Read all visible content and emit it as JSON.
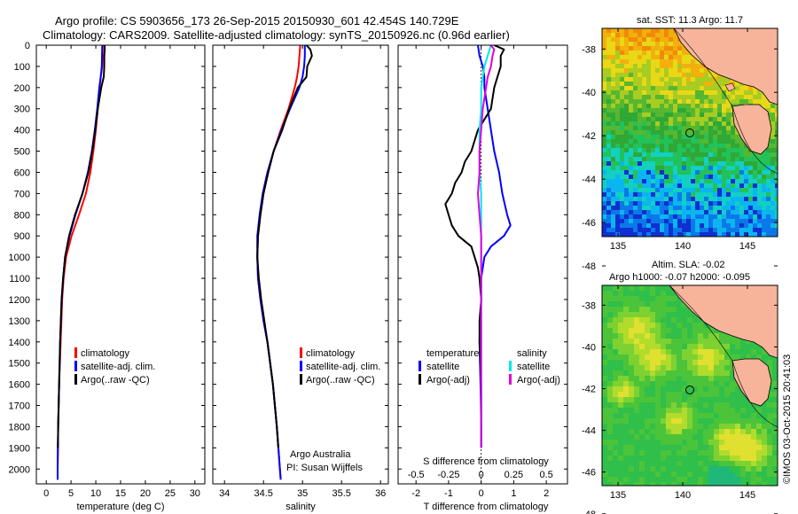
{
  "header": {
    "line1": "Argo profile: CS 5903656_173 26-Sep-2015 20150930_601 42.454S 140.729E",
    "line2": "Climatology: CARS2009. Satellite-adjusted climatology: synTS_20150926.nc (0.96d earlier)"
  },
  "colors": {
    "climatology": "#ff0000",
    "satellite": "#0000ff",
    "argo": "#000000",
    "cyan": "#00e5ee",
    "magenta": "#e000e0",
    "land": "#f7b49a"
  },
  "depth_ticks": [
    0,
    100,
    200,
    300,
    400,
    500,
    600,
    700,
    800,
    900,
    1000,
    1100,
    1200,
    1300,
    1400,
    1500,
    1600,
    1700,
    1800,
    1900,
    2000
  ],
  "map_sst": {
    "title": "sat. SST: 11.3 Argo: 11.7",
    "x_ticks": [
      "135",
      "140",
      "145"
    ],
    "y_ticks": [
      "-38",
      "-40",
      "-42",
      "-44",
      "-46",
      "-48"
    ]
  },
  "map_sla": {
    "title1": "Altim. SLA: -0.02",
    "title2": "Argo h1000: -0.07 h2000: -0.095",
    "x_ticks": [
      "135",
      "140",
      "145"
    ],
    "y_ticks": [
      "-38",
      "-40",
      "-42",
      "-44",
      "-46",
      "-48"
    ]
  },
  "credit": "©IMOS 03-Oct-2015 20:41:03",
  "chart_data": [
    {
      "type": "line",
      "xlabel": "temperature (deg C)",
      "ylabel": "",
      "xlim": [
        -2,
        32
      ],
      "ylim": [
        2070,
        0
      ],
      "x_ticks": [
        "0",
        "5",
        "10",
        "15",
        "20",
        "25",
        "30"
      ],
      "legend": [
        "climatology",
        "satellite-adj. clim.",
        "Argo(..raw -QC)"
      ],
      "series": [
        {
          "name": "climatology",
          "depth": [
            0,
            100,
            150,
            200,
            300,
            400,
            500,
            600,
            700,
            800,
            900,
            1000,
            1100,
            1200,
            1400,
            1600,
            1800,
            2000,
            2050
          ],
          "values": [
            11.4,
            11.3,
            11.0,
            10.8,
            10.4,
            10.0,
            9.5,
            8.9,
            8.0,
            6.6,
            5.1,
            4.0,
            3.5,
            3.2,
            2.9,
            2.6,
            2.4,
            2.3,
            2.3
          ]
        },
        {
          "name": "satellite-adj. clim.",
          "depth": [
            0,
            100,
            150,
            200,
            300,
            400,
            500,
            600,
            700,
            800,
            900,
            1000,
            1100,
            1200,
            1400,
            1600,
            1800,
            2000,
            2050
          ],
          "values": [
            11.3,
            11.2,
            11.0,
            10.7,
            10.3,
            9.8,
            9.2,
            8.4,
            7.3,
            5.9,
            4.7,
            3.8,
            3.4,
            3.1,
            2.8,
            2.6,
            2.4,
            2.3,
            2.3
          ]
        },
        {
          "name": "Argo(..raw -QC)",
          "depth": [
            0,
            20,
            50,
            100,
            150,
            200,
            300,
            400,
            500,
            600,
            700,
            800,
            900,
            1000,
            1100,
            1200,
            1400,
            1600,
            1800,
            1900
          ],
          "values": [
            11.8,
            11.8,
            11.7,
            11.7,
            11.6,
            11.1,
            10.4,
            9.9,
            9.3,
            8.5,
            7.3,
            5.8,
            4.6,
            3.8,
            3.4,
            3.1,
            2.8,
            2.6,
            2.4,
            2.35
          ]
        }
      ]
    },
    {
      "type": "line",
      "xlabel": "salinity",
      "ylabel": "",
      "xlim": [
        33.85,
        36.1
      ],
      "ylim": [
        2070,
        0
      ],
      "x_ticks": [
        "34",
        "34.5",
        "35",
        "35.5",
        "36"
      ],
      "legend": [
        "climatology",
        "satellite-adj. clim.",
        "Argo(..raw -QC)"
      ],
      "annotation": [
        "Argo Australia",
        "PI: Susan Wijffels"
      ],
      "series": [
        {
          "name": "climatology",
          "depth": [
            0,
            50,
            100,
            150,
            200,
            300,
            400,
            500,
            600,
            700,
            800,
            900,
            1000,
            1100,
            1200,
            1300,
            1400,
            1600,
            1800,
            2000,
            2050
          ],
          "values": [
            34.97,
            34.96,
            34.95,
            34.93,
            34.9,
            34.82,
            34.72,
            34.63,
            34.56,
            34.5,
            34.46,
            34.43,
            34.42,
            34.43,
            34.46,
            34.5,
            34.55,
            34.62,
            34.67,
            34.71,
            34.72
          ]
        },
        {
          "name": "satellite-adj. clim.",
          "depth": [
            0,
            50,
            100,
            150,
            200,
            300,
            400,
            500,
            600,
            700,
            800,
            900,
            1000,
            1100,
            1200,
            1300,
            1400,
            1600,
            1800,
            2000,
            2050
          ],
          "values": [
            35.03,
            35.03,
            35.02,
            35.0,
            34.96,
            34.84,
            34.73,
            34.63,
            34.55,
            34.49,
            34.45,
            34.42,
            34.42,
            34.43,
            34.46,
            34.5,
            34.55,
            34.62,
            34.67,
            34.71,
            34.72
          ]
        },
        {
          "name": "Argo(..raw -QC)",
          "depth": [
            0,
            20,
            50,
            100,
            150,
            200,
            300,
            400,
            500,
            600,
            700,
            800,
            900,
            1000,
            1100,
            1200,
            1400,
            1600,
            1800,
            1900
          ],
          "values": [
            35.05,
            35.1,
            35.12,
            35.06,
            35.05,
            34.94,
            34.83,
            34.74,
            34.63,
            34.56,
            34.5,
            34.46,
            34.43,
            34.42,
            34.44,
            34.47,
            34.55,
            34.62,
            34.67,
            34.69
          ]
        }
      ]
    },
    {
      "type": "line",
      "xlabel": "T difference from climatology",
      "xlabel_top": "S difference from climatology",
      "ylabel": "",
      "xlim": [
        -2.55,
        2.65
      ],
      "ylim": [
        2070,
        0
      ],
      "x_ticks": [
        "-2",
        "-1",
        "0",
        "1",
        "2"
      ],
      "x_ticks_top": [
        "-0.5",
        "-0.25",
        "0",
        "0.25",
        "0.5"
      ],
      "legend_left_title": "temperature",
      "legend_right_title": "salinity",
      "legend": [
        "satellite",
        "Argo(-adj)",
        "satellite",
        "Argo(-adj)"
      ],
      "series": [
        {
          "name": "satellite",
          "depth": [
            0,
            50,
            100,
            150,
            200,
            300,
            400,
            500,
            600,
            700,
            800,
            850,
            900,
            950,
            1000,
            1100,
            1200,
            1400,
            1600,
            1800,
            1900
          ],
          "values": [
            -0.1,
            -0.05,
            0.05,
            0.1,
            0.1,
            0.2,
            0.3,
            0.4,
            0.55,
            0.65,
            0.8,
            0.9,
            0.7,
            0.3,
            0.1,
            0.0,
            0.0,
            -0.05,
            -0.02,
            0.0,
            0.0
          ]
        },
        {
          "name": "Argo(-adj)",
          "depth": [
            0,
            20,
            50,
            100,
            150,
            200,
            300,
            400,
            500,
            550,
            600,
            650,
            700,
            750,
            800,
            850,
            900,
            950,
            1000,
            1050,
            1100,
            1200,
            1300,
            1400,
            1600,
            1800,
            1900
          ],
          "values": [
            0.4,
            0.7,
            0.6,
            0.6,
            0.5,
            0.4,
            0.3,
            -0.1,
            -0.3,
            -0.5,
            -0.6,
            -0.8,
            -0.9,
            -1.1,
            -1.0,
            -0.9,
            -0.7,
            -0.3,
            -0.2,
            -0.1,
            -0.05,
            0.0,
            -0.05,
            -0.05,
            0.0,
            0.0,
            0.0
          ]
        },
        {
          "name": "satellite",
          "depth": [
            0,
            50,
            100,
            150,
            200,
            300,
            400,
            500,
            600,
            700,
            800,
            900,
            1000,
            1100,
            1200,
            1400,
            1600,
            1800,
            1900
          ],
          "values": [
            0.3,
            0.2,
            0.1,
            0.05,
            0.0,
            0.0,
            -0.05,
            -0.05,
            -0.05,
            0.0,
            0.0,
            0.0,
            0.0,
            0.0,
            0.0,
            0.0,
            0.0,
            0.0,
            0.0
          ]
        },
        {
          "name": "Argo(-adj)",
          "depth": [
            0,
            20,
            50,
            100,
            150,
            200,
            300,
            400,
            500,
            600,
            700,
            800,
            900,
            1000,
            1100,
            1200,
            1400,
            1600,
            1800,
            1900
          ],
          "values": [
            0.3,
            0.4,
            0.35,
            0.3,
            0.2,
            0.15,
            0.05,
            0.0,
            -0.05,
            -0.05,
            -0.1,
            -0.05,
            0.0,
            0.0,
            0.0,
            0.0,
            0.0,
            0.0,
            0.0,
            0.0
          ]
        }
      ]
    }
  ]
}
